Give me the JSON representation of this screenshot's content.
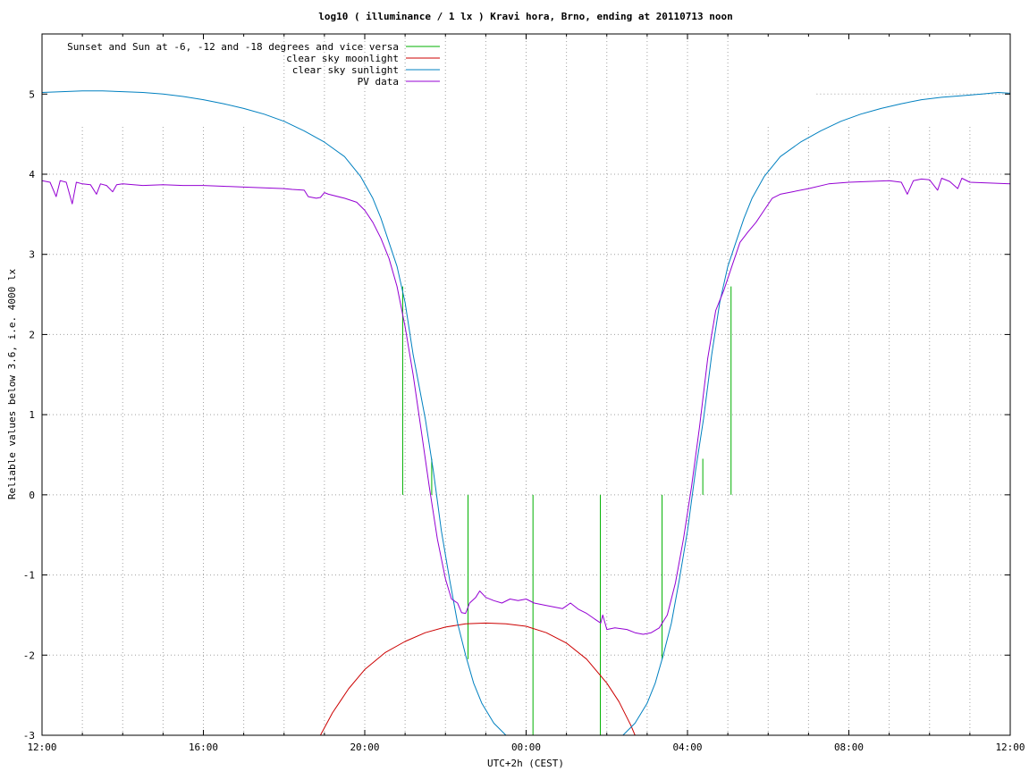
{
  "chart_data": {
    "type": "line",
    "title": "log10 ( illuminance / 1 lx ) Kravi hora, Brno, ending at 20110713 noon",
    "xlabel": "UTC+2h (CEST)",
    "ylabel": "Reliable values below 3.6, i.e. 4000 lx",
    "x_unit": "hours since 12:00 (local)",
    "xlim": [
      0,
      24
    ],
    "ylim": [
      -3,
      5.75
    ],
    "x_ticks": [
      {
        "x": 0,
        "label": "12:00"
      },
      {
        "x": 4,
        "label": "16:00"
      },
      {
        "x": 8,
        "label": "20:00"
      },
      {
        "x": 12,
        "label": "00:00"
      },
      {
        "x": 16,
        "label": "04:00"
      },
      {
        "x": 20,
        "label": "08:00"
      },
      {
        "x": 24,
        "label": "12:00"
      }
    ],
    "x_grid_minor_hours": [
      1,
      2,
      3,
      4,
      5,
      6,
      7,
      8,
      9,
      10,
      11,
      12,
      13,
      14,
      15,
      16,
      17,
      18,
      19,
      20,
      21,
      22,
      23
    ],
    "y_ticks": [
      {
        "y": -3,
        "label": "-3"
      },
      {
        "y": -2,
        "label": "-2"
      },
      {
        "y": -1,
        "label": "-1"
      },
      {
        "y": 0,
        "label": "0"
      },
      {
        "y": 1,
        "label": "1"
      },
      {
        "y": 2,
        "label": "2"
      },
      {
        "y": 3,
        "label": "3"
      },
      {
        "y": 4,
        "label": "4"
      },
      {
        "y": 5,
        "label": "5"
      }
    ],
    "grid": true,
    "legend_position": "top-left",
    "series": [
      {
        "name": "Sunset and Sun at -6, -12 and -18 degrees and vice versa",
        "kind": "vlines",
        "color": "#00b000",
        "lines": [
          {
            "x": 8.94,
            "y0": 0,
            "y1": 2.6
          },
          {
            "x": 9.66,
            "y0": 0,
            "y1": 0.45
          },
          {
            "x": 10.56,
            "y0": -2.05,
            "y1": 0
          },
          {
            "x": 12.17,
            "y0": -3,
            "y1": 0
          },
          {
            "x": 13.84,
            "y0": -3,
            "y1": 0
          },
          {
            "x": 15.37,
            "y0": -2.05,
            "y1": 0
          },
          {
            "x": 16.38,
            "y0": 0,
            "y1": 0.45
          },
          {
            "x": 17.08,
            "y0": 0,
            "y1": 2.6
          }
        ]
      },
      {
        "name": "clear sky moonlight",
        "kind": "line",
        "color": "#cc0000",
        "points": [
          [
            6.9,
            -3.0
          ],
          [
            7.2,
            -2.72
          ],
          [
            7.6,
            -2.42
          ],
          [
            8.0,
            -2.18
          ],
          [
            8.5,
            -1.97
          ],
          [
            9.0,
            -1.83
          ],
          [
            9.5,
            -1.72
          ],
          [
            10.0,
            -1.65
          ],
          [
            10.5,
            -1.61
          ],
          [
            11.0,
            -1.6
          ],
          [
            11.5,
            -1.61
          ],
          [
            12.0,
            -1.64
          ],
          [
            12.5,
            -1.72
          ],
          [
            13.0,
            -1.85
          ],
          [
            13.5,
            -2.05
          ],
          [
            14.0,
            -2.35
          ],
          [
            14.3,
            -2.58
          ],
          [
            14.6,
            -2.88
          ],
          [
            14.7,
            -3.0
          ]
        ]
      },
      {
        "name": "clear sky sunlight",
        "kind": "line",
        "color": "#0080c0",
        "points": [
          [
            0,
            5.02
          ],
          [
            0.5,
            5.03
          ],
          [
            1.0,
            5.04
          ],
          [
            1.5,
            5.04
          ],
          [
            2.0,
            5.03
          ],
          [
            2.5,
            5.02
          ],
          [
            3.0,
            5.0
          ],
          [
            3.5,
            4.97
          ],
          [
            4.0,
            4.93
          ],
          [
            4.5,
            4.88
          ],
          [
            5.0,
            4.82
          ],
          [
            5.5,
            4.75
          ],
          [
            6.0,
            4.66
          ],
          [
            6.5,
            4.54
          ],
          [
            7.0,
            4.4
          ],
          [
            7.5,
            4.22
          ],
          [
            7.9,
            3.97
          ],
          [
            8.2,
            3.7
          ],
          [
            8.4,
            3.45
          ],
          [
            8.6,
            3.15
          ],
          [
            8.8,
            2.85
          ],
          [
            9.0,
            2.4
          ],
          [
            9.2,
            1.75
          ],
          [
            9.5,
            0.95
          ],
          [
            9.7,
            0.3
          ],
          [
            9.9,
            -0.45
          ],
          [
            10.1,
            -1.05
          ],
          [
            10.3,
            -1.6
          ],
          [
            10.5,
            -2.0
          ],
          [
            10.7,
            -2.35
          ],
          [
            10.9,
            -2.6
          ],
          [
            11.2,
            -2.85
          ],
          [
            11.5,
            -3.0
          ]
        ]
      },
      {
        "name": "",
        "kind": "line",
        "color": "#0080c0",
        "points": [
          [
            14.4,
            -3.0
          ],
          [
            14.7,
            -2.85
          ],
          [
            15.0,
            -2.6
          ],
          [
            15.2,
            -2.35
          ],
          [
            15.4,
            -2.0
          ],
          [
            15.6,
            -1.6
          ],
          [
            15.8,
            -1.05
          ],
          [
            16.0,
            -0.45
          ],
          [
            16.2,
            0.3
          ],
          [
            16.4,
            0.95
          ],
          [
            16.6,
            1.75
          ],
          [
            16.8,
            2.4
          ],
          [
            17.0,
            2.85
          ],
          [
            17.2,
            3.15
          ],
          [
            17.4,
            3.45
          ],
          [
            17.6,
            3.7
          ],
          [
            17.9,
            3.97
          ],
          [
            18.3,
            4.22
          ],
          [
            18.8,
            4.4
          ],
          [
            19.3,
            4.54
          ],
          [
            19.8,
            4.66
          ],
          [
            20.3,
            4.75
          ],
          [
            20.8,
            4.82
          ],
          [
            21.3,
            4.88
          ],
          [
            21.8,
            4.93
          ],
          [
            22.3,
            4.96
          ],
          [
            22.8,
            4.98
          ],
          [
            23.3,
            5.0
          ],
          [
            23.7,
            5.02
          ],
          [
            24.0,
            5.01
          ]
        ]
      },
      {
        "name": "PV data",
        "kind": "line",
        "color": "#9400d3",
        "points": [
          [
            0,
            3.92
          ],
          [
            0.2,
            3.9
          ],
          [
            0.35,
            3.72
          ],
          [
            0.45,
            3.92
          ],
          [
            0.6,
            3.9
          ],
          [
            0.75,
            3.63
          ],
          [
            0.85,
            3.9
          ],
          [
            1.0,
            3.88
          ],
          [
            1.2,
            3.87
          ],
          [
            1.35,
            3.75
          ],
          [
            1.45,
            3.88
          ],
          [
            1.6,
            3.86
          ],
          [
            1.75,
            3.78
          ],
          [
            1.85,
            3.87
          ],
          [
            2.0,
            3.88
          ],
          [
            2.5,
            3.86
          ],
          [
            3.0,
            3.87
          ],
          [
            3.5,
            3.86
          ],
          [
            4.0,
            3.86
          ],
          [
            4.5,
            3.85
          ],
          [
            5.0,
            3.84
          ],
          [
            5.5,
            3.83
          ],
          [
            6.0,
            3.82
          ],
          [
            6.2,
            3.81
          ],
          [
            6.5,
            3.8
          ],
          [
            6.6,
            3.72
          ],
          [
            6.8,
            3.7
          ],
          [
            6.9,
            3.71
          ],
          [
            7.0,
            3.77
          ],
          [
            7.1,
            3.75
          ],
          [
            7.5,
            3.7
          ],
          [
            7.8,
            3.65
          ],
          [
            8.0,
            3.55
          ],
          [
            8.2,
            3.4
          ],
          [
            8.4,
            3.2
          ],
          [
            8.6,
            2.95
          ],
          [
            8.8,
            2.6
          ],
          [
            9.0,
            2.1
          ],
          [
            9.2,
            1.5
          ],
          [
            9.4,
            0.8
          ],
          [
            9.6,
            0.1
          ],
          [
            9.8,
            -0.55
          ],
          [
            10.0,
            -1.05
          ],
          [
            10.15,
            -1.3
          ],
          [
            10.3,
            -1.35
          ],
          [
            10.4,
            -1.47
          ],
          [
            10.5,
            -1.48
          ],
          [
            10.6,
            -1.35
          ],
          [
            10.75,
            -1.28
          ],
          [
            10.85,
            -1.2
          ],
          [
            11.0,
            -1.28
          ],
          [
            11.2,
            -1.32
          ],
          [
            11.4,
            -1.35
          ],
          [
            11.6,
            -1.3
          ],
          [
            11.8,
            -1.32
          ],
          [
            12.0,
            -1.3
          ],
          [
            12.2,
            -1.35
          ],
          [
            12.5,
            -1.38
          ],
          [
            12.7,
            -1.4
          ],
          [
            12.9,
            -1.42
          ],
          [
            13.1,
            -1.35
          ],
          [
            13.3,
            -1.43
          ],
          [
            13.5,
            -1.48
          ],
          [
            13.7,
            -1.55
          ],
          [
            13.85,
            -1.6
          ],
          [
            13.9,
            -1.5
          ],
          [
            14.0,
            -1.68
          ],
          [
            14.2,
            -1.66
          ],
          [
            14.5,
            -1.68
          ],
          [
            14.7,
            -1.72
          ],
          [
            14.9,
            -1.74
          ],
          [
            15.1,
            -1.72
          ],
          [
            15.3,
            -1.66
          ],
          [
            15.5,
            -1.5
          ],
          [
            15.7,
            -1.1
          ],
          [
            15.9,
            -0.55
          ],
          [
            16.1,
            0.1
          ],
          [
            16.3,
            0.85
          ],
          [
            16.5,
            1.7
          ],
          [
            16.7,
            2.3
          ],
          [
            16.9,
            2.55
          ],
          [
            17.1,
            2.85
          ],
          [
            17.3,
            3.15
          ],
          [
            17.5,
            3.28
          ],
          [
            17.7,
            3.4
          ],
          [
            17.9,
            3.55
          ],
          [
            18.1,
            3.7
          ],
          [
            18.3,
            3.75
          ],
          [
            18.6,
            3.78
          ],
          [
            19.0,
            3.82
          ],
          [
            19.5,
            3.88
          ],
          [
            20.0,
            3.9
          ],
          [
            20.5,
            3.91
          ],
          [
            21.0,
            3.92
          ],
          [
            21.3,
            3.9
          ],
          [
            21.45,
            3.75
          ],
          [
            21.6,
            3.92
          ],
          [
            21.8,
            3.94
          ],
          [
            22.0,
            3.93
          ],
          [
            22.2,
            3.8
          ],
          [
            22.3,
            3.95
          ],
          [
            22.5,
            3.91
          ],
          [
            22.7,
            3.82
          ],
          [
            22.8,
            3.95
          ],
          [
            23.0,
            3.9
          ],
          [
            23.5,
            3.89
          ],
          [
            24.0,
            3.88
          ]
        ]
      }
    ]
  }
}
